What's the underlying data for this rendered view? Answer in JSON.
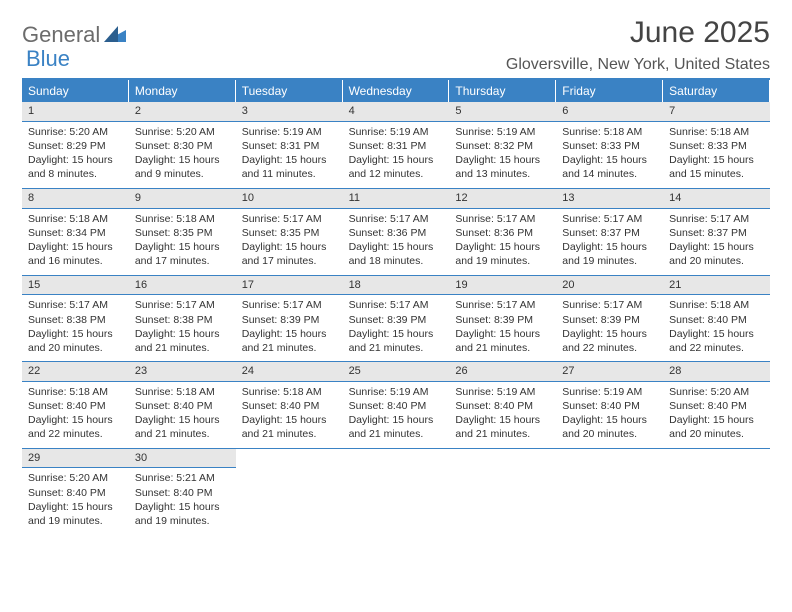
{
  "brand": {
    "name1": "General",
    "name2": "Blue",
    "accent": "#3a82c4"
  },
  "title": "June 2025",
  "location": "Gloversville, New York, United States",
  "day_headers": [
    "Sunday",
    "Monday",
    "Tuesday",
    "Wednesday",
    "Thursday",
    "Friday",
    "Saturday"
  ],
  "style": {
    "header_bg": "#3a82c4",
    "header_text": "#ffffff",
    "daynum_bg": "#e7e7e7",
    "border_color": "#3a82c4",
    "body_text": "#333333",
    "title_fontsize": 30,
    "body_fontsize": 10.5,
    "header_fontsize": 12
  },
  "days": [
    {
      "n": "1",
      "sunrise": "Sunrise: 5:20 AM",
      "sunset": "Sunset: 8:29 PM",
      "day1": "Daylight: 15 hours",
      "day2": "and 8 minutes."
    },
    {
      "n": "2",
      "sunrise": "Sunrise: 5:20 AM",
      "sunset": "Sunset: 8:30 PM",
      "day1": "Daylight: 15 hours",
      "day2": "and 9 minutes."
    },
    {
      "n": "3",
      "sunrise": "Sunrise: 5:19 AM",
      "sunset": "Sunset: 8:31 PM",
      "day1": "Daylight: 15 hours",
      "day2": "and 11 minutes."
    },
    {
      "n": "4",
      "sunrise": "Sunrise: 5:19 AM",
      "sunset": "Sunset: 8:31 PM",
      "day1": "Daylight: 15 hours",
      "day2": "and 12 minutes."
    },
    {
      "n": "5",
      "sunrise": "Sunrise: 5:19 AM",
      "sunset": "Sunset: 8:32 PM",
      "day1": "Daylight: 15 hours",
      "day2": "and 13 minutes."
    },
    {
      "n": "6",
      "sunrise": "Sunrise: 5:18 AM",
      "sunset": "Sunset: 8:33 PM",
      "day1": "Daylight: 15 hours",
      "day2": "and 14 minutes."
    },
    {
      "n": "7",
      "sunrise": "Sunrise: 5:18 AM",
      "sunset": "Sunset: 8:33 PM",
      "day1": "Daylight: 15 hours",
      "day2": "and 15 minutes."
    },
    {
      "n": "8",
      "sunrise": "Sunrise: 5:18 AM",
      "sunset": "Sunset: 8:34 PM",
      "day1": "Daylight: 15 hours",
      "day2": "and 16 minutes."
    },
    {
      "n": "9",
      "sunrise": "Sunrise: 5:18 AM",
      "sunset": "Sunset: 8:35 PM",
      "day1": "Daylight: 15 hours",
      "day2": "and 17 minutes."
    },
    {
      "n": "10",
      "sunrise": "Sunrise: 5:17 AM",
      "sunset": "Sunset: 8:35 PM",
      "day1": "Daylight: 15 hours",
      "day2": "and 17 minutes."
    },
    {
      "n": "11",
      "sunrise": "Sunrise: 5:17 AM",
      "sunset": "Sunset: 8:36 PM",
      "day1": "Daylight: 15 hours",
      "day2": "and 18 minutes."
    },
    {
      "n": "12",
      "sunrise": "Sunrise: 5:17 AM",
      "sunset": "Sunset: 8:36 PM",
      "day1": "Daylight: 15 hours",
      "day2": "and 19 minutes."
    },
    {
      "n": "13",
      "sunrise": "Sunrise: 5:17 AM",
      "sunset": "Sunset: 8:37 PM",
      "day1": "Daylight: 15 hours",
      "day2": "and 19 minutes."
    },
    {
      "n": "14",
      "sunrise": "Sunrise: 5:17 AM",
      "sunset": "Sunset: 8:37 PM",
      "day1": "Daylight: 15 hours",
      "day2": "and 20 minutes."
    },
    {
      "n": "15",
      "sunrise": "Sunrise: 5:17 AM",
      "sunset": "Sunset: 8:38 PM",
      "day1": "Daylight: 15 hours",
      "day2": "and 20 minutes."
    },
    {
      "n": "16",
      "sunrise": "Sunrise: 5:17 AM",
      "sunset": "Sunset: 8:38 PM",
      "day1": "Daylight: 15 hours",
      "day2": "and 21 minutes."
    },
    {
      "n": "17",
      "sunrise": "Sunrise: 5:17 AM",
      "sunset": "Sunset: 8:39 PM",
      "day1": "Daylight: 15 hours",
      "day2": "and 21 minutes."
    },
    {
      "n": "18",
      "sunrise": "Sunrise: 5:17 AM",
      "sunset": "Sunset: 8:39 PM",
      "day1": "Daylight: 15 hours",
      "day2": "and 21 minutes."
    },
    {
      "n": "19",
      "sunrise": "Sunrise: 5:17 AM",
      "sunset": "Sunset: 8:39 PM",
      "day1": "Daylight: 15 hours",
      "day2": "and 21 minutes."
    },
    {
      "n": "20",
      "sunrise": "Sunrise: 5:17 AM",
      "sunset": "Sunset: 8:39 PM",
      "day1": "Daylight: 15 hours",
      "day2": "and 22 minutes."
    },
    {
      "n": "21",
      "sunrise": "Sunrise: 5:18 AM",
      "sunset": "Sunset: 8:40 PM",
      "day1": "Daylight: 15 hours",
      "day2": "and 22 minutes."
    },
    {
      "n": "22",
      "sunrise": "Sunrise: 5:18 AM",
      "sunset": "Sunset: 8:40 PM",
      "day1": "Daylight: 15 hours",
      "day2": "and 22 minutes."
    },
    {
      "n": "23",
      "sunrise": "Sunrise: 5:18 AM",
      "sunset": "Sunset: 8:40 PM",
      "day1": "Daylight: 15 hours",
      "day2": "and 21 minutes."
    },
    {
      "n": "24",
      "sunrise": "Sunrise: 5:18 AM",
      "sunset": "Sunset: 8:40 PM",
      "day1": "Daylight: 15 hours",
      "day2": "and 21 minutes."
    },
    {
      "n": "25",
      "sunrise": "Sunrise: 5:19 AM",
      "sunset": "Sunset: 8:40 PM",
      "day1": "Daylight: 15 hours",
      "day2": "and 21 minutes."
    },
    {
      "n": "26",
      "sunrise": "Sunrise: 5:19 AM",
      "sunset": "Sunset: 8:40 PM",
      "day1": "Daylight: 15 hours",
      "day2": "and 21 minutes."
    },
    {
      "n": "27",
      "sunrise": "Sunrise: 5:19 AM",
      "sunset": "Sunset: 8:40 PM",
      "day1": "Daylight: 15 hours",
      "day2": "and 20 minutes."
    },
    {
      "n": "28",
      "sunrise": "Sunrise: 5:20 AM",
      "sunset": "Sunset: 8:40 PM",
      "day1": "Daylight: 15 hours",
      "day2": "and 20 minutes."
    },
    {
      "n": "29",
      "sunrise": "Sunrise: 5:20 AM",
      "sunset": "Sunset: 8:40 PM",
      "day1": "Daylight: 15 hours",
      "day2": "and 19 minutes."
    },
    {
      "n": "30",
      "sunrise": "Sunrise: 5:21 AM",
      "sunset": "Sunset: 8:40 PM",
      "day1": "Daylight: 15 hours",
      "day2": "and 19 minutes."
    }
  ]
}
